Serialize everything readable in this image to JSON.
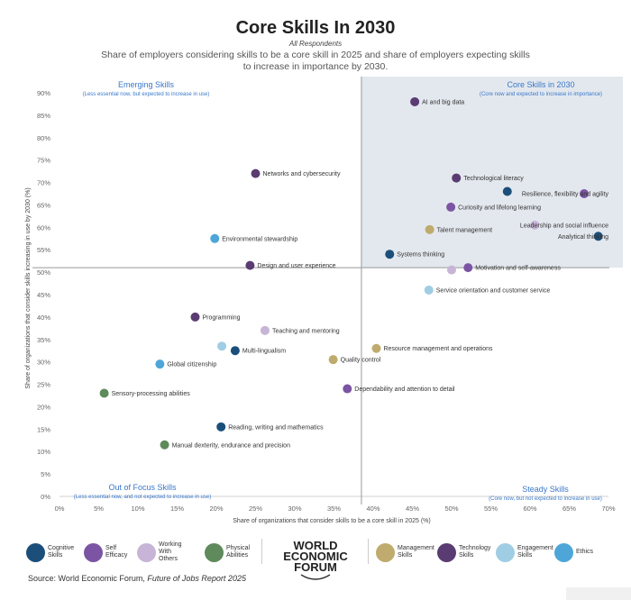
{
  "header": {
    "title": "Core Skills In 2030",
    "subtitle": "All Respondents",
    "description": "Share of employers considering skills to be a core skill in 2025 and share of employers expecting skills to increase in importance by 2030."
  },
  "colors": {
    "cognitive": "#1b4f7a",
    "self_efficacy": "#7b55a3",
    "working_with_others": "#c7b4d6",
    "physical": "#5e8a5c",
    "management": "#bfab6d",
    "technology": "#5a3c72",
    "engagement": "#9fcde3",
    "ethics": "#4ea6d8",
    "quadrant_fill": "#e3e8ee",
    "quadrant_text": "#3a78c9"
  },
  "quadrants": {
    "top_left": {
      "title": "Emerging Skills",
      "sub": "(Less essential now, but expected to increase in use)"
    },
    "top_right": {
      "title": "Core Skills in 2030",
      "sub": "(Core now and expected to increase in importance)"
    },
    "bottom_left": {
      "title": "Out of Focus Skills",
      "sub": "(Less essential now, and not expected to increase in use)"
    },
    "bottom_right": {
      "title": "Steady Skills",
      "sub": "(Core now, but not expected to increase in use)"
    }
  },
  "chart_data": {
    "type": "scatter",
    "xlabel": "Share of organizations that consider skills to be a core skill in 2025 (%)",
    "ylabel": "Share of organizations that consider skills increasing in use by 2030 (%)",
    "xlim": [
      0,
      70
    ],
    "ylim": [
      0,
      90
    ],
    "x_ticks": [
      "0%",
      "5%",
      "10%",
      "15%",
      "20%",
      "25%",
      "30%",
      "35%",
      "40%",
      "45%",
      "50%",
      "55%",
      "60%",
      "65%",
      "70%"
    ],
    "y_ticks": [
      "0%",
      "5%",
      "10%",
      "15%",
      "20%",
      "25%",
      "30%",
      "35%",
      "40%",
      "45%",
      "50%",
      "55%",
      "60%",
      "65%",
      "70%",
      "75%",
      "80%",
      "85%",
      "90%"
    ],
    "divider_x": 38.5,
    "divider_y": 51,
    "points": [
      {
        "label": "AI and big data",
        "x": 45.3,
        "y": 88,
        "category": "technology"
      },
      {
        "label": "Networks and cybersecurity",
        "x": 25,
        "y": 72,
        "category": "technology"
      },
      {
        "label": "Technological literacy",
        "x": 50.6,
        "y": 71,
        "category": "technology"
      },
      {
        "label": "Resilience, flexibility and agility",
        "x": 66.9,
        "y": 67.5,
        "category": "self_efficacy"
      },
      {
        "label": "",
        "x": 57.1,
        "y": 68,
        "category": "cognitive"
      },
      {
        "label": "Curiosity and lifelong learning",
        "x": 49.9,
        "y": 64.5,
        "category": "self_efficacy"
      },
      {
        "label": "Leadership and social influence",
        "x": 60.6,
        "y": 60.5,
        "category": "working_with_others"
      },
      {
        "label": "Talent management",
        "x": 47.2,
        "y": 59.5,
        "category": "management"
      },
      {
        "label": "Analytical thinking",
        "x": 68.7,
        "y": 58,
        "category": "cognitive"
      },
      {
        "label": "Environmental stewardship",
        "x": 19.8,
        "y": 57.5,
        "category": "ethics"
      },
      {
        "label": "Systems thinking",
        "x": 42.1,
        "y": 54,
        "category": "cognitive"
      },
      {
        "label": "Design and user experience",
        "x": 24.3,
        "y": 51.5,
        "category": "technology"
      },
      {
        "label": "",
        "x": 50,
        "y": 50.5,
        "category": "working_with_others"
      },
      {
        "label": "Motivation and self-awareness",
        "x": 52.1,
        "y": 51,
        "category": "self_efficacy"
      },
      {
        "label": "Service orientation and customer service",
        "x": 47.1,
        "y": 46,
        "category": "engagement"
      },
      {
        "label": "Programming",
        "x": 17.3,
        "y": 40,
        "category": "technology"
      },
      {
        "label": "Teaching and mentoring",
        "x": 26.2,
        "y": 37,
        "category": "working_with_others"
      },
      {
        "label": "",
        "x": 20.7,
        "y": 33.5,
        "category": "engagement"
      },
      {
        "label": "Multi-lingualism",
        "x": 22.4,
        "y": 32.5,
        "category": "cognitive"
      },
      {
        "label": "Resource management and operations",
        "x": 40.4,
        "y": 33,
        "category": "management"
      },
      {
        "label": "Global citizenship",
        "x": 12.8,
        "y": 29.5,
        "category": "ethics"
      },
      {
        "label": "Quality control",
        "x": 34.9,
        "y": 30.5,
        "category": "management"
      },
      {
        "label": "Dependability and attention to detail",
        "x": 36.7,
        "y": 24,
        "category": "self_efficacy"
      },
      {
        "label": "Sensory-processing abilities",
        "x": 5.7,
        "y": 23,
        "category": "physical"
      },
      {
        "label": "Reading, writing and mathematics",
        "x": 20.6,
        "y": 15.5,
        "category": "cognitive"
      },
      {
        "label": "Manual dexterity, endurance and precision",
        "x": 13.4,
        "y": 11.5,
        "category": "physical"
      }
    ]
  },
  "legend_left": [
    {
      "label1": "Cognitive",
      "label2": "Skills",
      "category": "cognitive"
    },
    {
      "label1": "Self",
      "label2": "Efficacy",
      "category": "self_efficacy"
    },
    {
      "label1": "Working With",
      "label2": "Others",
      "category": "working_with_others"
    },
    {
      "label1": "Physical",
      "label2": "Abilities",
      "category": "physical"
    }
  ],
  "legend_right": [
    {
      "label1": "Management",
      "label2": "Skills",
      "category": "management"
    },
    {
      "label1": "Technology",
      "label2": "Skills",
      "category": "technology"
    },
    {
      "label1": "Engagement",
      "label2": "Skills",
      "category": "engagement"
    },
    {
      "label1": "Ethics",
      "label2": "",
      "category": "ethics"
    }
  ],
  "logo": {
    "line1": "WORLD",
    "line2": "ECONOMIC",
    "line3": "FORUM"
  },
  "source": {
    "prefix": "Source: World Economic Forum, ",
    "title": "Future of Jobs Report 2025"
  }
}
